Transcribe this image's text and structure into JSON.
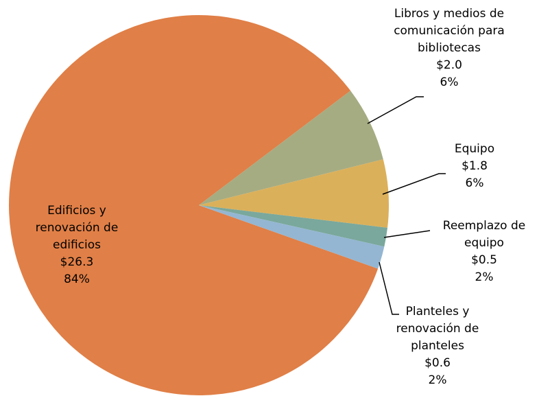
{
  "chart_data": {
    "type": "pie",
    "categories": [
      "Edificios y renovación de edificios",
      "Libros y medios de comunicación para bibliotecas",
      "Equipo",
      "Reemplazo de equipo",
      "Planteles y renovación de planteles"
    ],
    "values": [
      26.3,
      2.0,
      1.8,
      0.5,
      0.6
    ],
    "value_labels": [
      "$26.3",
      "$2.0",
      "$1.8",
      "$0.5",
      "$0.6"
    ],
    "percent_labels": [
      "84%",
      "6%",
      "6%",
      "2%",
      "2%"
    ],
    "colors": [
      "#E07F47",
      "#A5AC82",
      "#DBB05A",
      "#7AA89C",
      "#94B6D2"
    ]
  }
}
